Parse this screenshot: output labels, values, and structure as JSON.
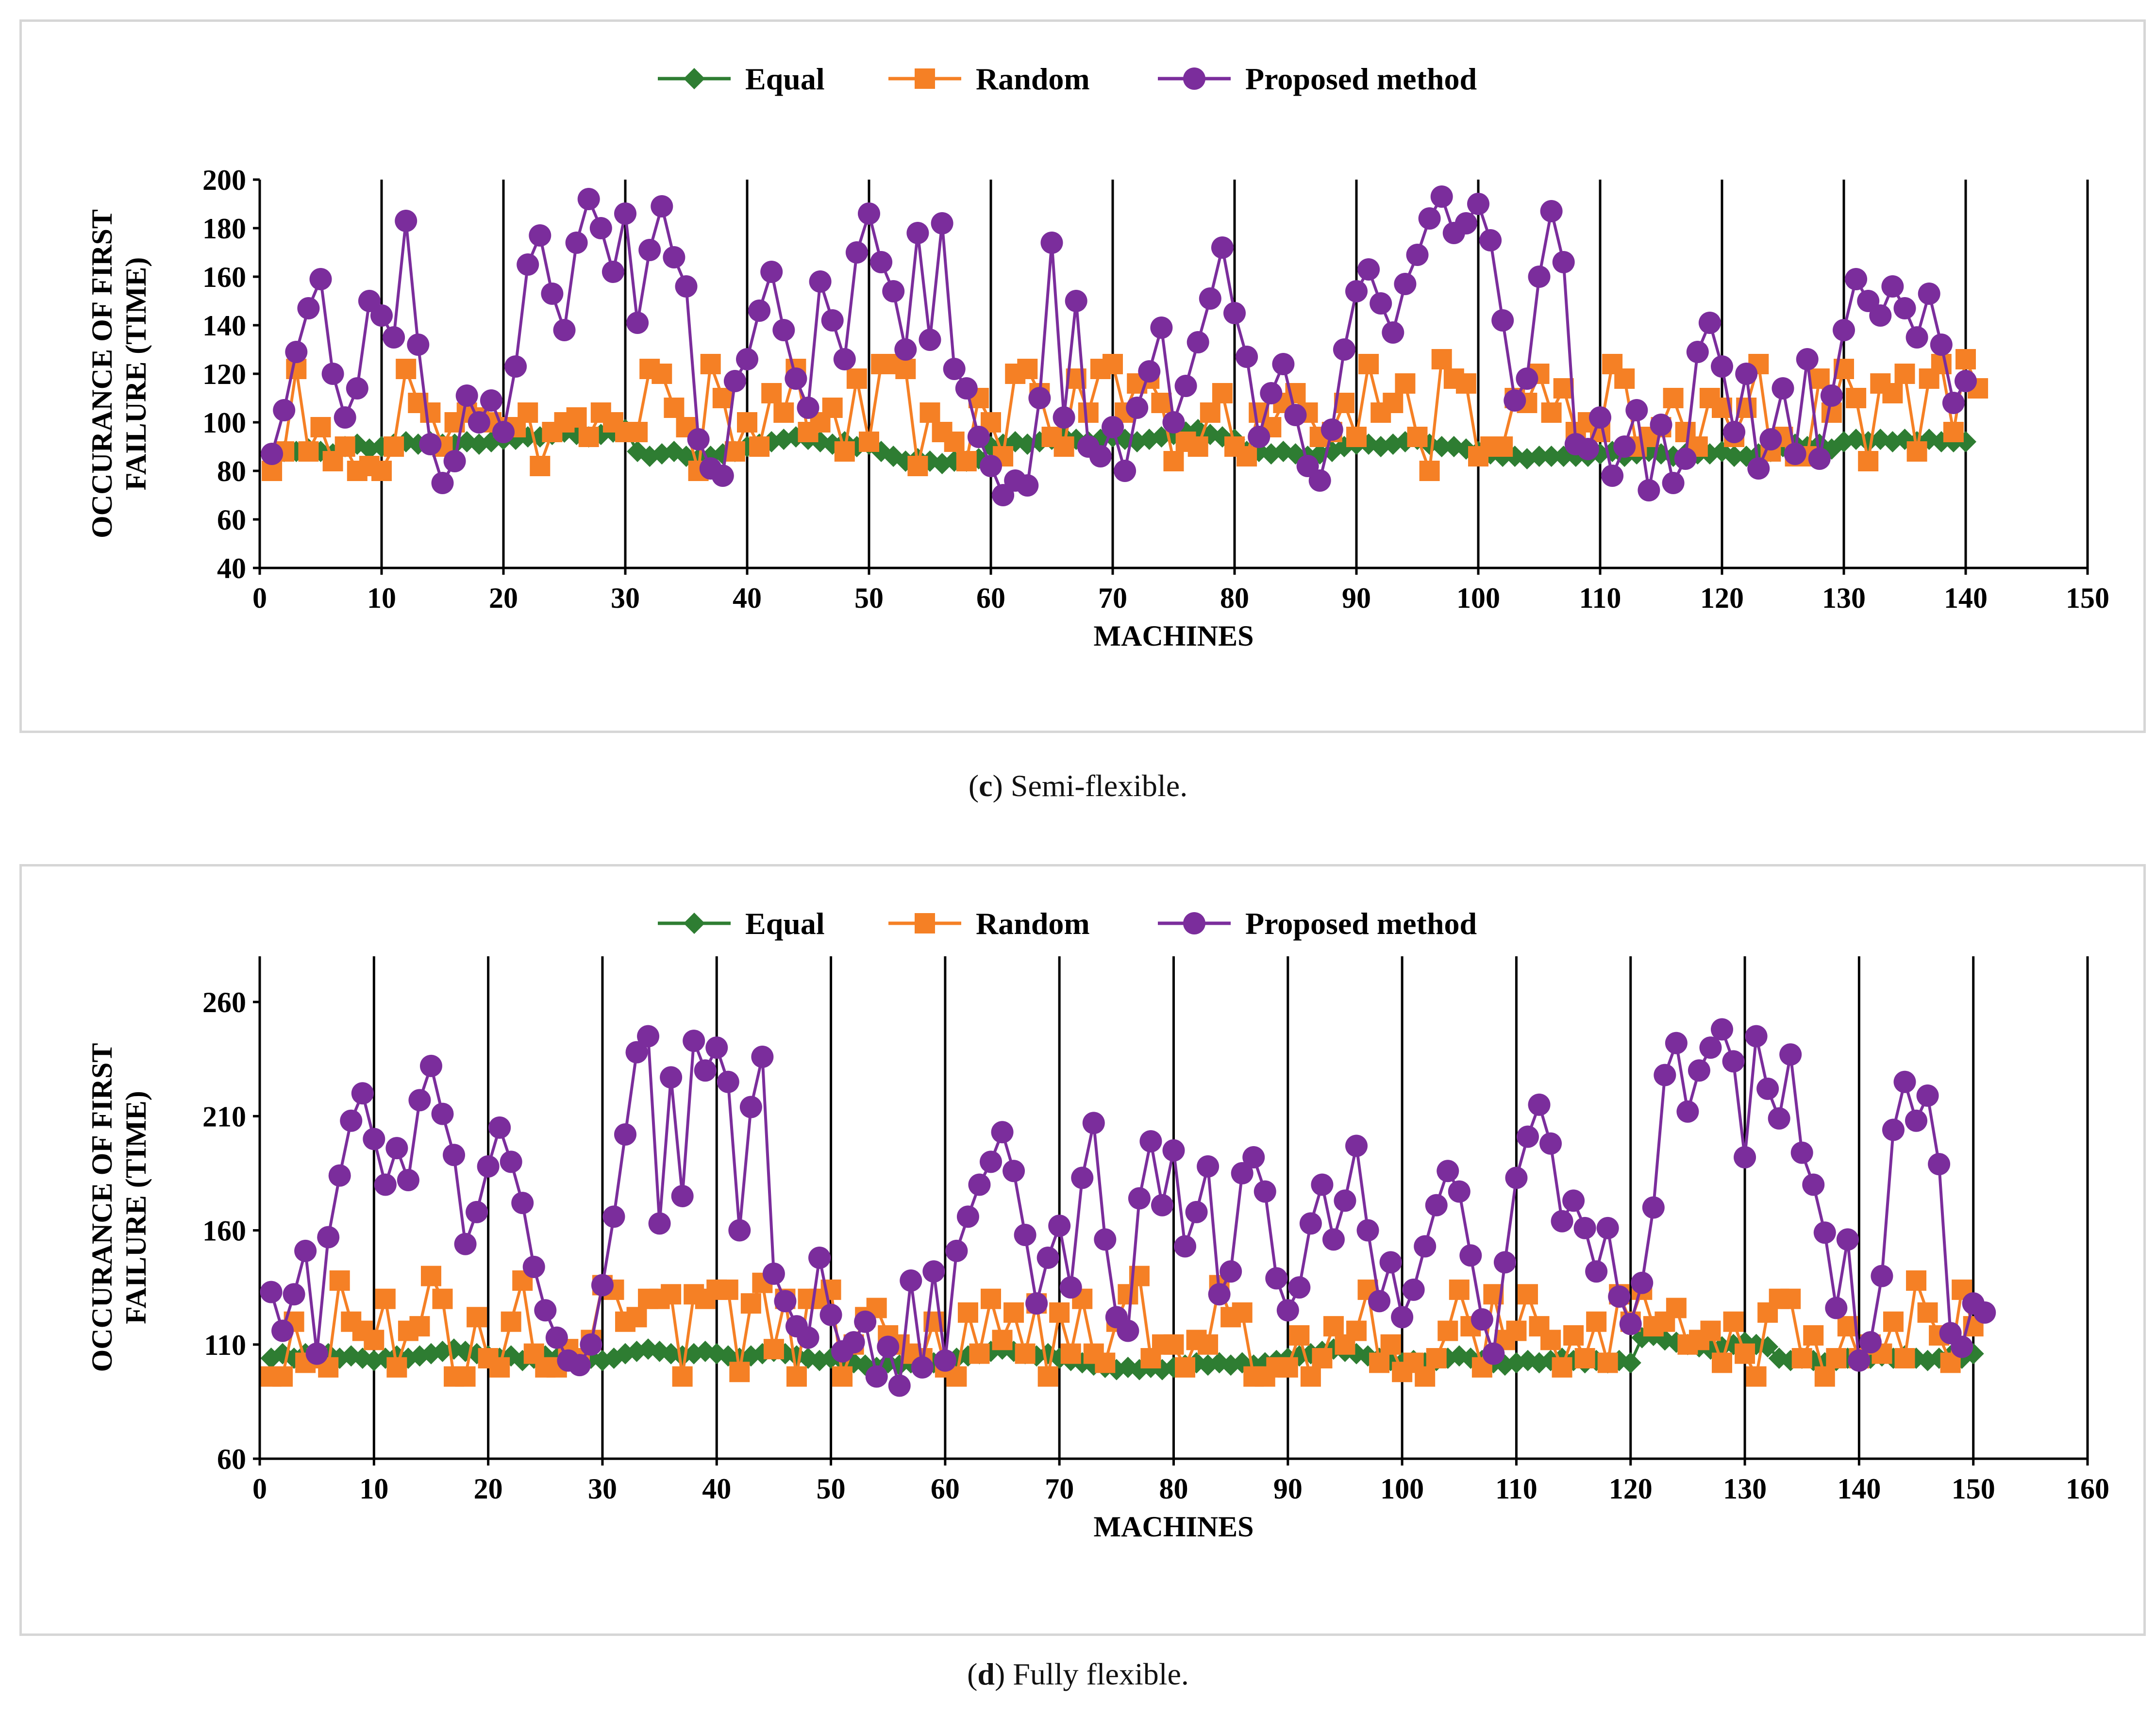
{
  "chart_data": [
    {
      "id": "c",
      "type": "line",
      "caption_letter": "c",
      "caption_text": "Semi-flexible.",
      "xlabel": "MACHINES",
      "ylabel_line1": "OCCURANCE OF FIRST",
      "ylabel_line2": "FAILURE (TIME)",
      "xlim": [
        0,
        150
      ],
      "ylim": [
        40,
        200
      ],
      "xticks": [
        0,
        10,
        20,
        30,
        40,
        50,
        60,
        70,
        80,
        90,
        100,
        110,
        120,
        130,
        140,
        150
      ],
      "yticks": [
        40,
        60,
        80,
        100,
        120,
        140,
        160,
        180,
        200
      ],
      "grid": "vertical",
      "legend_position": "top-center",
      "series": [
        {
          "name": "Equal",
          "color": "#2e7d32",
          "marker": "diamond",
          "values": [
            86,
            88,
            88,
            89,
            88,
            87,
            90,
            91,
            89,
            90,
            91,
            92,
            91,
            92,
            91,
            91,
            92,
            91,
            92,
            93,
            93,
            94,
            94,
            95,
            96,
            95,
            94,
            95,
            96,
            97,
            88,
            86,
            87,
            88,
            86,
            85,
            86,
            87,
            88,
            90,
            91,
            92,
            93,
            94,
            93,
            92,
            91,
            92,
            90,
            91,
            88,
            86,
            84,
            85,
            84,
            83,
            84,
            84,
            85,
            90,
            91,
            92,
            91,
            92,
            93,
            94,
            93,
            92,
            93,
            94,
            93,
            92,
            93,
            94,
            95,
            96,
            97,
            95,
            94,
            93,
            88,
            88,
            87,
            88,
            87,
            86,
            87,
            88,
            90,
            91,
            91,
            90,
            91,
            92,
            93,
            91,
            90,
            90,
            89,
            88,
            87,
            86,
            86,
            85,
            86,
            86,
            86,
            86,
            86,
            87,
            88,
            86,
            87,
            88,
            87,
            86,
            87,
            87,
            87,
            88,
            86,
            86,
            87,
            88,
            90,
            91,
            90,
            91,
            89,
            92,
            93,
            92,
            93,
            92,
            93,
            92,
            93,
            92,
            92,
            92
          ]
        },
        {
          "name": "Random",
          "color": "#f58025",
          "marker": "square",
          "values": [
            80,
            88,
            122,
            88,
            98,
            84,
            90,
            80,
            82,
            80,
            90,
            122,
            108,
            104,
            90,
            100,
            104,
            102,
            100,
            98,
            98,
            104,
            82,
            96,
            100,
            102,
            94,
            104,
            100,
            96,
            96,
            122,
            120,
            106,
            98,
            80,
            124,
            110,
            88,
            100,
            90,
            112,
            104,
            122,
            96,
            100,
            106,
            88,
            118,
            92,
            124,
            124,
            122,
            82,
            104,
            96,
            92,
            84,
            110,
            100,
            86,
            120,
            122,
            112,
            94,
            90,
            118,
            104,
            122,
            124,
            104,
            116,
            118,
            108,
            84,
            92,
            90,
            104,
            112,
            90,
            86,
            104,
            98,
            108,
            112,
            104,
            94,
            96,
            108,
            94,
            124,
            104,
            108,
            116,
            94,
            80,
            126,
            118,
            116,
            86,
            90,
            90,
            110,
            108,
            120,
            104,
            114,
            96,
            100,
            96,
            124,
            118,
            90,
            94,
            98,
            110,
            96,
            90,
            110,
            106,
            94,
            106,
            124,
            88,
            94,
            86,
            86,
            118,
            104,
            122,
            110,
            84,
            116,
            112,
            120,
            88,
            118,
            124,
            96,
            126,
            114
          ]
        },
        {
          "name": "Proposed method",
          "color": "#7b2d9c",
          "marker": "circle",
          "values": [
            87,
            105,
            129,
            147,
            159,
            120,
            102,
            114,
            150,
            144,
            135,
            183,
            132,
            91,
            75,
            84,
            111,
            100,
            109,
            96,
            123,
            165,
            177,
            153,
            138,
            174,
            192,
            180,
            162,
            186,
            141,
            171,
            189,
            168,
            156,
            93,
            81,
            78,
            117,
            126,
            146,
            162,
            138,
            118,
            106,
            158,
            142,
            126,
            170,
            186,
            166,
            154,
            130,
            178,
            134,
            182,
            122,
            114,
            94,
            82,
            70,
            76,
            74,
            110,
            174,
            102,
            150,
            90,
            86,
            98,
            80,
            106,
            121,
            139,
            100,
            115,
            133,
            151,
            172,
            145,
            127,
            94,
            112,
            124,
            103,
            82,
            76,
            97,
            130,
            154,
            163,
            149,
            137,
            157,
            169,
            184,
            193,
            178,
            182,
            190,
            175,
            142,
            109,
            118,
            160,
            187,
            166,
            91,
            89,
            102,
            78,
            90,
            105,
            72,
            99,
            75,
            85,
            129,
            141,
            123,
            96,
            120,
            81,
            93,
            114,
            87,
            126,
            85,
            111,
            138,
            159,
            150,
            144,
            156,
            147,
            135,
            153,
            132,
            108,
            117
          ]
        }
      ]
    },
    {
      "id": "d",
      "type": "line",
      "caption_letter": "d",
      "caption_text": "Fully flexible.",
      "xlabel": "MACHINES",
      "ylabel_line1": "OCCURANCE OF FIRST",
      "ylabel_line2": "FAILURE (TIME)",
      "xlim": [
        0,
        160
      ],
      "ylim": [
        60,
        280
      ],
      "xticks": [
        0,
        10,
        20,
        30,
        40,
        50,
        60,
        70,
        80,
        90,
        100,
        110,
        120,
        130,
        140,
        150,
        160
      ],
      "yticks": [
        60,
        110,
        160,
        210,
        260
      ],
      "grid": "vertical",
      "legend_position": "top-center",
      "series": [
        {
          "name": "Equal",
          "color": "#2e7d32",
          "marker": "diamond",
          "values": [
            104,
            106,
            104,
            106,
            105,
            106,
            104,
            105,
            104,
            103,
            104,
            105,
            104,
            105,
            106,
            107,
            108,
            107,
            106,
            105,
            104,
            105,
            103,
            104,
            105,
            104,
            103,
            102,
            104,
            103,
            104,
            106,
            107,
            108,
            107,
            106,
            105,
            106,
            107,
            106,
            105,
            104,
            105,
            106,
            107,
            106,
            105,
            104,
            103,
            104,
            103,
            102,
            101,
            100,
            102,
            101,
            102,
            101,
            102,
            103,
            104,
            105,
            106,
            107,
            108,
            107,
            106,
            105,
            106,
            104,
            103,
            102,
            101,
            100,
            99,
            100,
            99,
            100,
            99,
            100,
            101,
            102,
            101,
            102,
            101,
            102,
            101,
            102,
            103,
            104,
            105,
            106,
            107,
            108,
            107,
            106,
            105,
            104,
            103,
            102,
            103,
            102,
            103,
            104,
            105,
            104,
            103,
            102,
            101,
            102,
            103,
            102,
            103,
            104,
            103,
            102,
            103,
            102,
            103,
            102,
            113,
            114,
            112,
            111,
            110,
            109,
            108,
            109,
            110,
            111,
            110,
            109,
            104,
            103,
            104,
            103,
            102,
            103,
            104,
            103,
            104,
            105,
            104,
            105,
            104,
            103,
            104,
            105,
            104,
            106
          ]
        },
        {
          "name": "Random",
          "color": "#f58025",
          "marker": "square",
          "values": [
            96,
            96,
            120,
            102,
            104,
            100,
            138,
            120,
            116,
            112,
            130,
            100,
            116,
            118,
            140,
            130,
            96,
            96,
            122,
            104,
            100,
            120,
            138,
            106,
            100,
            100,
            108,
            104,
            112,
            136,
            134,
            120,
            122,
            130,
            130,
            132,
            96,
            132,
            130,
            134,
            134,
            98,
            128,
            137,
            108,
            130,
            96,
            130,
            130,
            134,
            96,
            110,
            122,
            126,
            114,
            110,
            106,
            104,
            120,
            100,
            96,
            124,
            106,
            130,
            112,
            124,
            106,
            128,
            96,
            124,
            106,
            130,
            106,
            102,
            120,
            132,
            140,
            104,
            110,
            110,
            100,
            112,
            110,
            136,
            122,
            124,
            96,
            96,
            100,
            100,
            114,
            96,
            104,
            118,
            110,
            116,
            134,
            102,
            110,
            98,
            102,
            96,
            104,
            116,
            134,
            118,
            100,
            132,
            112,
            116,
            132,
            118,
            112,
            100,
            114,
            104,
            120,
            102,
            132,
            120,
            134,
            118,
            120,
            126,
            110,
            112,
            116,
            102,
            120,
            106,
            96,
            124,
            130,
            130,
            104,
            114,
            96,
            104,
            118,
            104,
            110,
            106,
            120,
            104,
            138,
            124,
            114,
            102,
            134,
            118
          ]
        },
        {
          "name": "Proposed method",
          "color": "#7b2d9c",
          "marker": "circle",
          "values": [
            133,
            116,
            132,
            151,
            106,
            157,
            184,
            208,
            220,
            200,
            180,
            196,
            182,
            217,
            232,
            211,
            193,
            154,
            168,
            188,
            205,
            190,
            172,
            144,
            125,
            113,
            103,
            101,
            110,
            136,
            166,
            202,
            238,
            245,
            163,
            227,
            175,
            243,
            230,
            240,
            225,
            160,
            214,
            236,
            141,
            129,
            118,
            113,
            148,
            123,
            107,
            111,
            120,
            96,
            109,
            92,
            138,
            100,
            142,
            103,
            151,
            166,
            180,
            190,
            203,
            186,
            158,
            128,
            148,
            162,
            135,
            183,
            207,
            156,
            122,
            116,
            174,
            199,
            171,
            195,
            153,
            168,
            188,
            132,
            142,
            185,
            192,
            177,
            139,
            125,
            135,
            163,
            180,
            156,
            173,
            197,
            160,
            129,
            146,
            122,
            134,
            153,
            171,
            186,
            177,
            149,
            121,
            106,
            146,
            183,
            201,
            215,
            198,
            164,
            173,
            161,
            142,
            161,
            131,
            119,
            137,
            170,
            228,
            242,
            212,
            230,
            240,
            248,
            234,
            192,
            245,
            222,
            209,
            237,
            194,
            180,
            159,
            126,
            156,
            103,
            111,
            140,
            204,
            225,
            208,
            219,
            189,
            115,
            109,
            128,
            124
          ]
        }
      ]
    }
  ]
}
